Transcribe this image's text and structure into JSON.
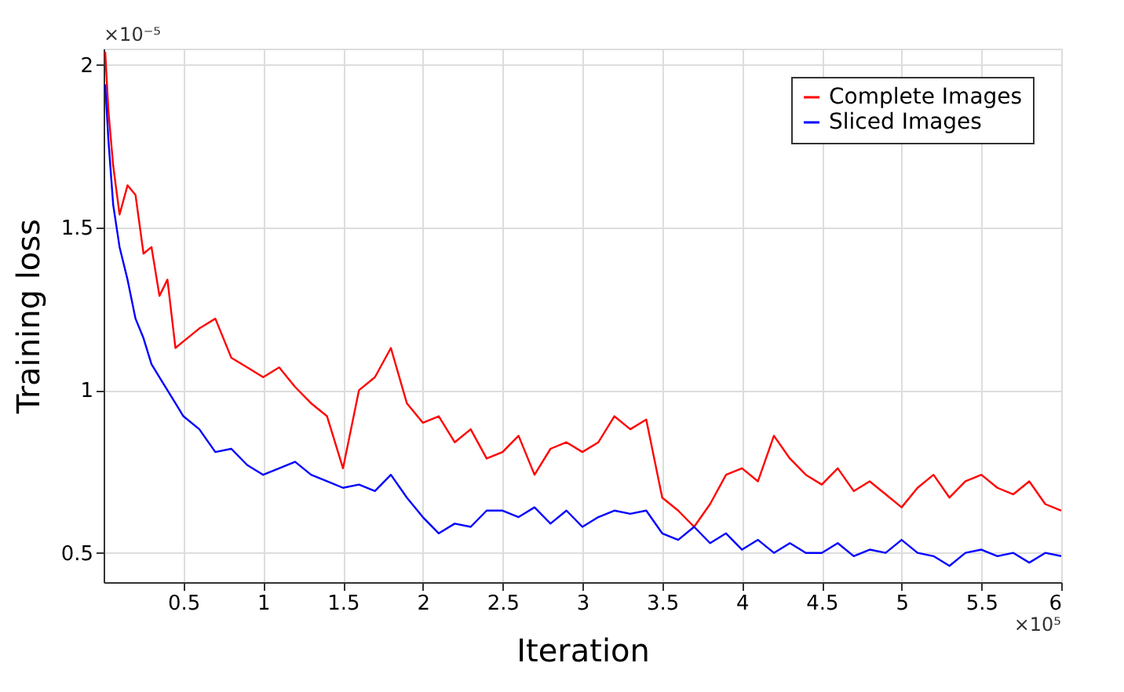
{
  "chart_data": {
    "type": "line",
    "xlabel": "Iteration",
    "ylabel": "Training loss",
    "annotations": [
      "×10⁻⁵",
      "×10⁵"
    ],
    "grid": true,
    "legend": "top right",
    "xlim": [
      0,
      6
    ],
    "xticks": [
      0.5,
      1,
      1.5,
      2,
      2.5,
      3,
      3.5,
      4,
      4.5,
      5,
      5.5,
      6
    ],
    "ylim": [
      0.41,
      2.05
    ],
    "yticks": [
      0.5,
      1,
      1.5,
      2
    ],
    "series": [
      {
        "name": "Complete Images",
        "color": "#ff0000",
        "x": [
          0.01,
          0.03,
          0.06,
          0.1,
          0.15,
          0.2,
          0.25,
          0.3,
          0.35,
          0.4,
          0.45,
          0.5,
          0.6,
          0.7,
          0.8,
          0.9,
          1.0,
          1.1,
          1.2,
          1.3,
          1.4,
          1.5,
          1.6,
          1.7,
          1.8,
          1.9,
          2.0,
          2.1,
          2.2,
          2.3,
          2.4,
          2.5,
          2.6,
          2.7,
          2.8,
          2.9,
          3.0,
          3.1,
          3.2,
          3.3,
          3.4,
          3.5,
          3.6,
          3.7,
          3.8,
          3.9,
          4.0,
          4.1,
          4.2,
          4.3,
          4.4,
          4.5,
          4.6,
          4.7,
          4.8,
          4.9,
          5.0,
          5.1,
          5.2,
          5.3,
          5.4,
          5.5,
          5.6,
          5.7,
          5.8,
          5.9,
          6.0
        ],
        "values": [
          2.04,
          1.86,
          1.69,
          1.54,
          1.63,
          1.6,
          1.42,
          1.44,
          1.29,
          1.34,
          1.13,
          1.15,
          1.19,
          1.22,
          1.1,
          1.07,
          1.04,
          1.07,
          1.01,
          0.96,
          0.92,
          0.76,
          1,
          1.04,
          1.13,
          0.96,
          0.9,
          0.92,
          0.84,
          0.88,
          0.79,
          0.81,
          0.86,
          0.74,
          0.82,
          0.84,
          0.81,
          0.84,
          0.92,
          0.88,
          0.91,
          0.67,
          0.63,
          0.58,
          0.65,
          0.74,
          0.76,
          0.72,
          0.86,
          0.79,
          0.74,
          0.71,
          0.76,
          0.69,
          0.72,
          0.68,
          0.64,
          0.7,
          0.74,
          0.67,
          0.72,
          0.74,
          0.7,
          0.68,
          0.72,
          0.65,
          0.63
        ]
      },
      {
        "name": "Sliced Images",
        "color": "#0000ff",
        "x": [
          0.01,
          0.03,
          0.06,
          0.1,
          0.15,
          0.2,
          0.25,
          0.3,
          0.35,
          0.4,
          0.45,
          0.5,
          0.6,
          0.7,
          0.8,
          0.9,
          1.0,
          1.1,
          1.2,
          1.3,
          1.4,
          1.5,
          1.6,
          1.7,
          1.8,
          1.9,
          2.0,
          2.1,
          2.2,
          2.3,
          2.4,
          2.5,
          2.6,
          2.7,
          2.8,
          2.9,
          3.0,
          3.1,
          3.2,
          3.3,
          3.4,
          3.5,
          3.6,
          3.7,
          3.8,
          3.9,
          4.0,
          4.1,
          4.2,
          4.3,
          4.4,
          4.5,
          4.6,
          4.7,
          4.8,
          4.9,
          5.0,
          5.1,
          5.2,
          5.3,
          5.4,
          5.5,
          5.6,
          5.7,
          5.8,
          5.9,
          6.0
        ],
        "values": [
          1.94,
          1.77,
          1.57,
          1.44,
          1.34,
          1.22,
          1.16,
          1.08,
          1.04,
          1,
          0.96,
          0.92,
          0.88,
          0.81,
          0.82,
          0.77,
          0.74,
          0.76,
          0.78,
          0.74,
          0.72,
          0.7,
          0.71,
          0.69,
          0.74,
          0.67,
          0.61,
          0.56,
          0.59,
          0.58,
          0.63,
          0.63,
          0.61,
          0.64,
          0.59,
          0.63,
          0.58,
          0.61,
          0.63,
          0.62,
          0.63,
          0.56,
          0.54,
          0.58,
          0.53,
          0.56,
          0.51,
          0.54,
          0.5,
          0.53,
          0.5,
          0.5,
          0.53,
          0.49,
          0.51,
          0.5,
          0.54,
          0.5,
          0.49,
          0.46,
          0.5,
          0.51,
          0.49,
          0.5,
          0.47,
          0.5,
          0.49
        ]
      }
    ]
  }
}
